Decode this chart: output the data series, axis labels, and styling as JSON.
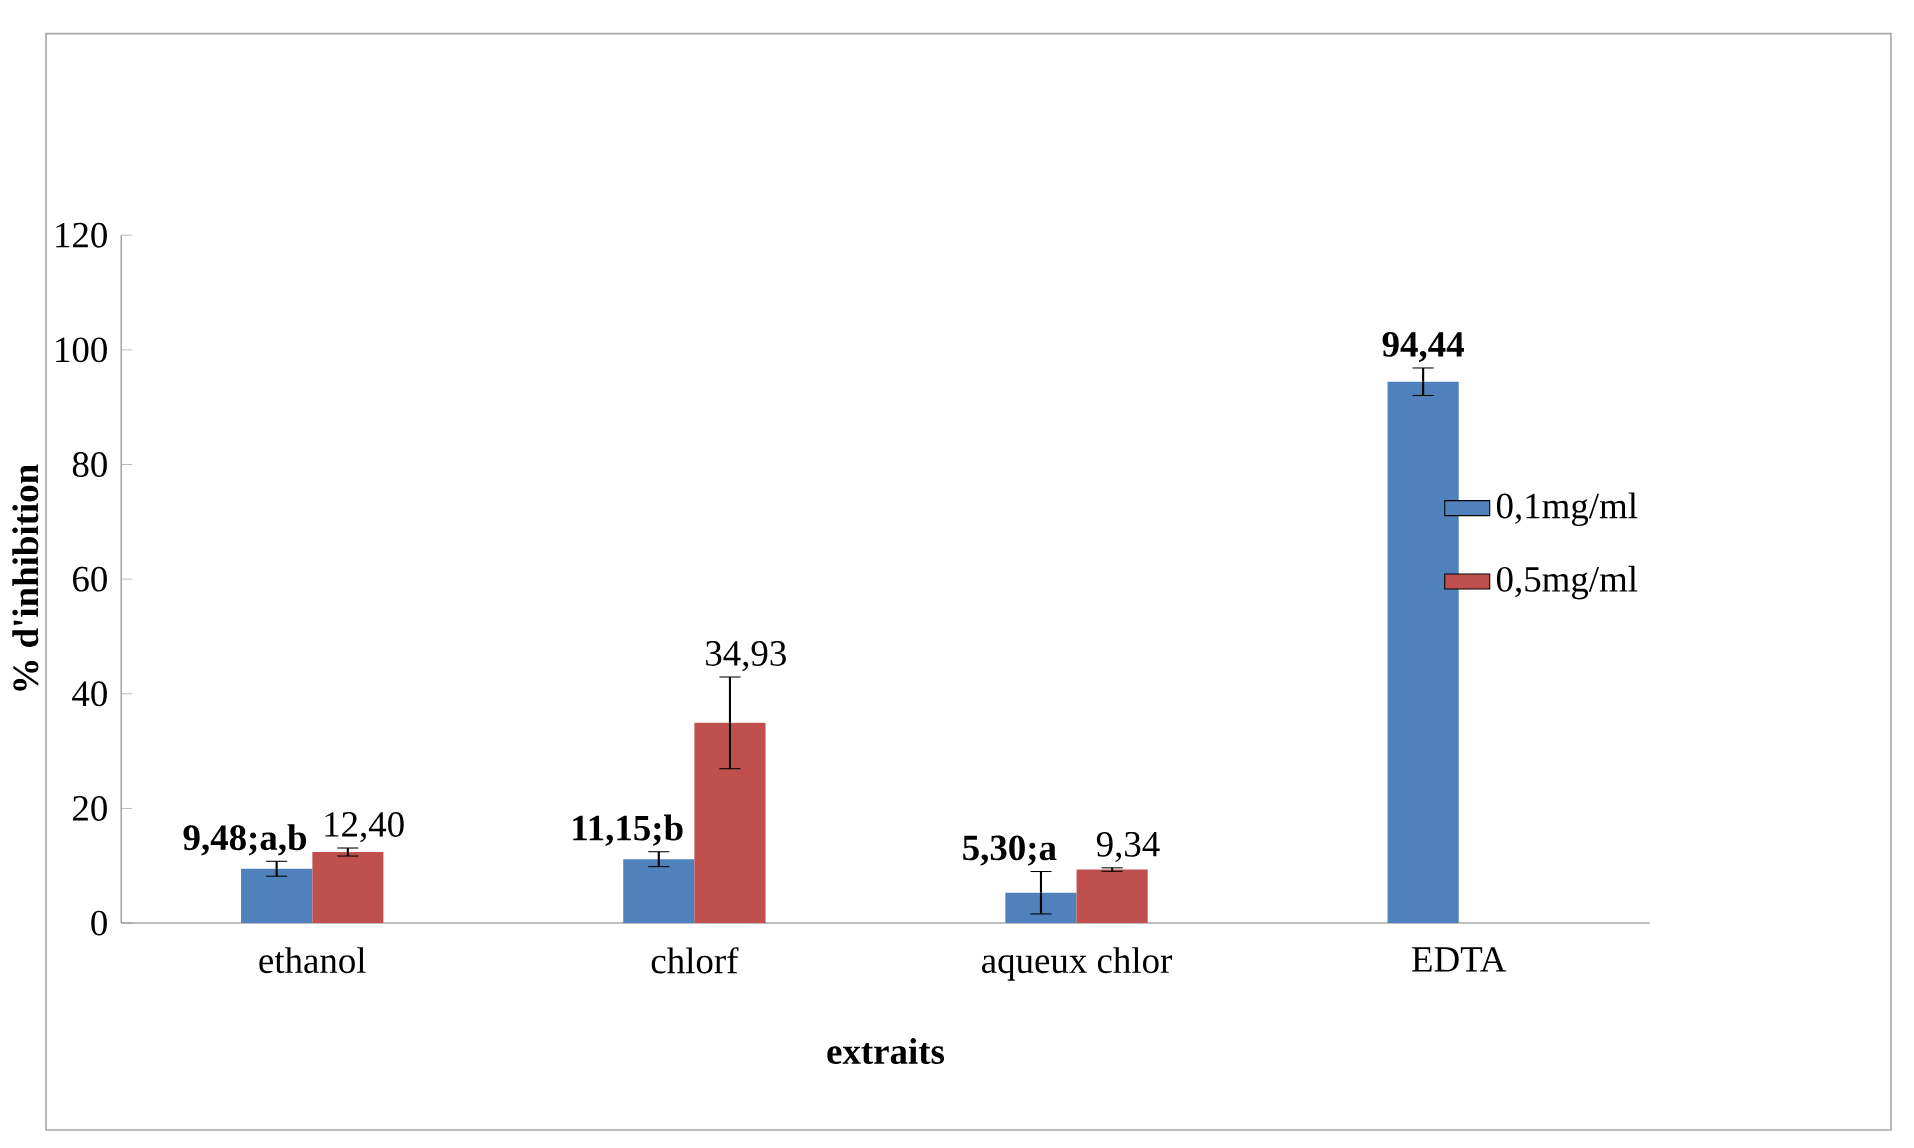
{
  "chart_data": {
    "type": "bar",
    "xlabel": "extraits",
    "ylabel": "% d'inhibition",
    "categories": [
      "ethanol",
      "chlorf",
      "aqueux chlor",
      "EDTA"
    ],
    "series": [
      {
        "name": "0,1mg/ml",
        "color": "#4f81bd",
        "values": [
          9.48,
          11.15,
          5.3,
          94.44
        ],
        "errors": [
          1.3,
          1.3,
          3.7,
          2.4
        ],
        "value_labels": [
          "9,48;a,b",
          "11,15;b",
          "5,30;a",
          "94,44"
        ]
      },
      {
        "name": "0,5mg/ml",
        "color": "#c0504d",
        "values": [
          12.4,
          34.93,
          9.34,
          null
        ],
        "errors": [
          0.7,
          8,
          0.3,
          null
        ],
        "value_labels": [
          "12,40",
          "34,93",
          "9,34",
          null
        ]
      }
    ],
    "ylim": [
      0,
      120
    ],
    "yticks": [
      0,
      20,
      40,
      60,
      80,
      100,
      120
    ],
    "grid": false,
    "legend": "right"
  }
}
